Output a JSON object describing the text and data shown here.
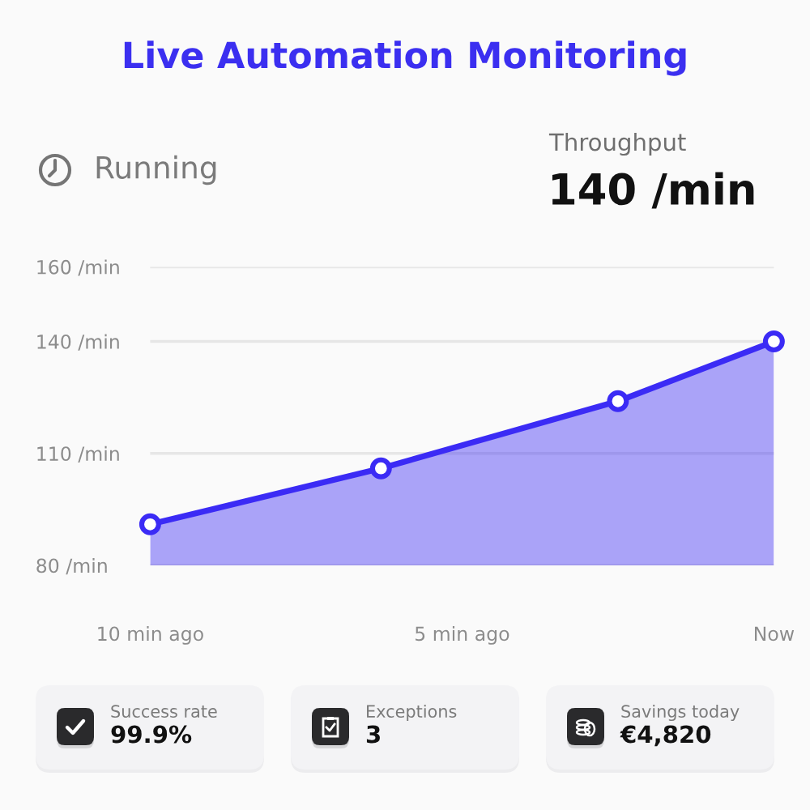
{
  "chart_data": {
    "type": "area",
    "title": "Live Automation Monitoring",
    "x": [
      -10,
      -6.3,
      -2.5,
      0
    ],
    "series": [
      {
        "color": "#3b2bf5",
        "values": [
          91,
          106,
          124,
          140
        ]
      }
    ],
    "xlim": [
      -10,
      0
    ],
    "xticks": [
      {
        "value": -10,
        "label": "10 min ago"
      },
      {
        "value": -5,
        "label": "5 min ago"
      },
      {
        "value": 0,
        "label": "Now"
      }
    ],
    "ylim": [
      80,
      160
    ],
    "yticks": [
      {
        "value": 80,
        "label": "80 /min"
      },
      {
        "value": 110,
        "label": "110 /min"
      },
      {
        "value": 140,
        "label": "140 /min"
      },
      {
        "value": 160,
        "label": "160 /min"
      }
    ],
    "grid": "y",
    "marker": "circle",
    "annotations": [
      "Running",
      "Throughput",
      "140 /min",
      "Success rate",
      "99.9%",
      "Exceptions",
      "3",
      "Savings today",
      "€4,820"
    ]
  }
}
